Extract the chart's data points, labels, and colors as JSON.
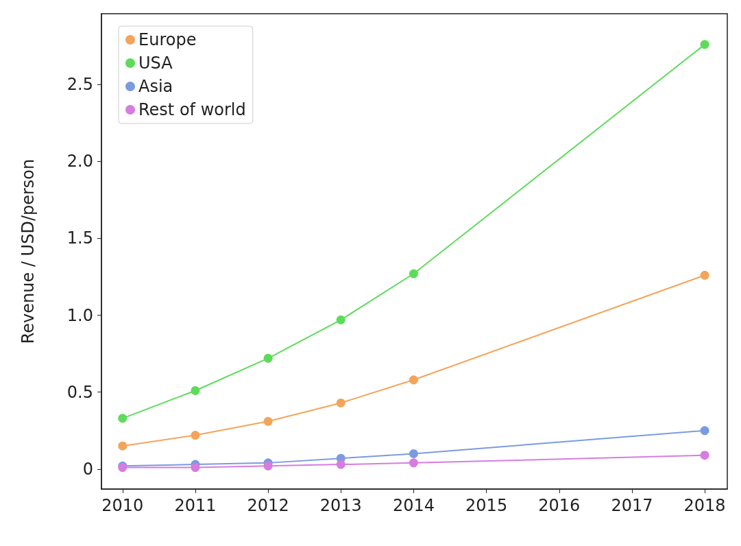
{
  "chart_data": {
    "type": "line",
    "ylabel": "Revenue / USD/person",
    "x": [
      2010,
      2011,
      2012,
      2013,
      2014,
      2018
    ],
    "series": [
      {
        "name": "Europe",
        "color": "#f4a45a",
        "values": [
          0.15,
          0.22,
          0.31,
          0.43,
          0.58,
          1.26
        ]
      },
      {
        "name": "USA",
        "color": "#5ddc5a",
        "values": [
          0.33,
          0.51,
          0.72,
          0.97,
          1.27,
          2.76
        ]
      },
      {
        "name": "Asia",
        "color": "#7b9be0",
        "values": [
          0.02,
          0.03,
          0.04,
          0.07,
          0.1,
          0.25
        ]
      },
      {
        "name": "Rest of world",
        "color": "#d77ce0",
        "values": [
          0.01,
          0.01,
          0.02,
          0.03,
          0.04,
          0.09
        ]
      }
    ],
    "xlim": [
      2009.71,
      2018.31
    ],
    "xticks": [
      2010,
      2011,
      2012,
      2013,
      2014,
      2015,
      2016,
      2017,
      2018
    ],
    "ylim": [
      -0.13,
      2.96
    ],
    "yticks": [
      0,
      {
        "value": 0.5,
        "label": "0.5"
      },
      {
        "value": 1,
        "label": "1.0"
      },
      {
        "value": 1.5,
        "label": "1.5"
      },
      {
        "value": 2,
        "label": "2.0"
      },
      {
        "value": 2.5,
        "label": "2.5"
      }
    ],
    "legend": "top left",
    "grid": false,
    "marker": "circle",
    "line_style": "solid"
  }
}
